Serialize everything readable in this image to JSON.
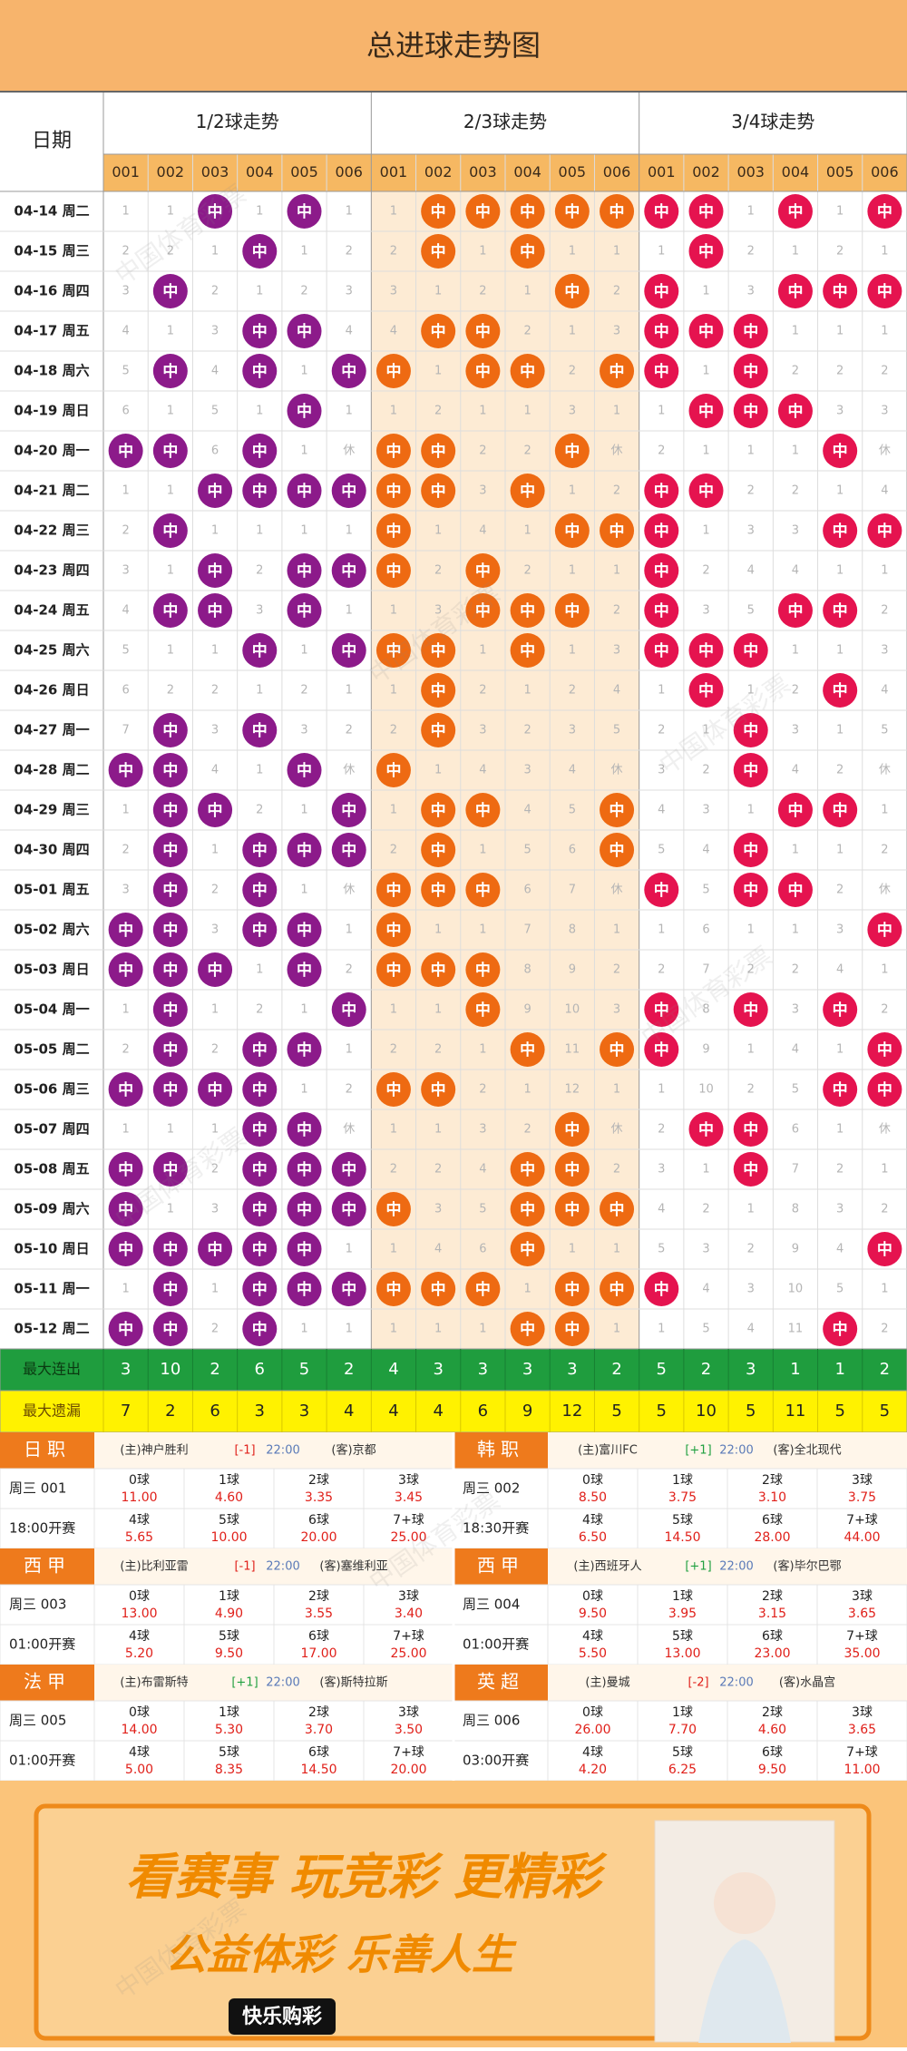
{
  "title": "总进球走势图",
  "date_header": "日期",
  "groups": [
    {
      "name": "1/2球走势",
      "color": "#8c1a8a"
    },
    {
      "name": "2/3球走势",
      "color": "#ee6a12"
    },
    {
      "name": "3/4球走势",
      "color": "#e5134f"
    }
  ],
  "codes": [
    "001",
    "002",
    "003",
    "004",
    "005",
    "006"
  ],
  "rows": [
    {
      "date": "04-14 周二",
      "cells": [
        1,
        1,
        "中",
        1,
        "中",
        1,
        1,
        "中",
        "中",
        "中",
        "中",
        "中",
        "中",
        "中",
        1,
        "中",
        1,
        "中"
      ]
    },
    {
      "date": "04-15 周三",
      "cells": [
        2,
        2,
        1,
        "中",
        1,
        2,
        2,
        "中",
        1,
        "中",
        1,
        1,
        1,
        "中",
        2,
        1,
        2,
        1
      ]
    },
    {
      "date": "04-16 周四",
      "cells": [
        3,
        "中",
        2,
        1,
        2,
        3,
        3,
        1,
        2,
        1,
        "中",
        2,
        "中",
        1,
        3,
        "中",
        "中",
        "中"
      ]
    },
    {
      "date": "04-17 周五",
      "cells": [
        4,
        1,
        3,
        "中",
        "中",
        4,
        4,
        "中",
        "中",
        2,
        1,
        3,
        "中",
        "中",
        "中",
        1,
        1,
        1
      ]
    },
    {
      "date": "04-18 周六",
      "cells": [
        5,
        "中",
        4,
        "中",
        1,
        "中",
        "中",
        1,
        "中",
        "中",
        2,
        "中",
        "中",
        1,
        "中",
        2,
        2,
        2
      ]
    },
    {
      "date": "04-19 周日",
      "cells": [
        6,
        1,
        5,
        1,
        "中",
        1,
        1,
        2,
        1,
        1,
        3,
        1,
        1,
        "中",
        "中",
        "中",
        3,
        3
      ]
    },
    {
      "date": "04-20 周一",
      "cells": [
        "中",
        "中",
        6,
        "中",
        1,
        "休",
        "中",
        "中",
        2,
        2,
        "中",
        "休",
        2,
        1,
        1,
        1,
        "中",
        "休"
      ]
    },
    {
      "date": "04-21 周二",
      "cells": [
        1,
        1,
        "中",
        "中",
        "中",
        "中",
        "中",
        "中",
        3,
        "中",
        1,
        2,
        "中",
        "中",
        2,
        2,
        1,
        4
      ]
    },
    {
      "date": "04-22 周三",
      "cells": [
        2,
        "中",
        1,
        1,
        1,
        1,
        "中",
        1,
        4,
        1,
        "中",
        "中",
        "中",
        1,
        3,
        3,
        "中",
        "中"
      ]
    },
    {
      "date": "04-23 周四",
      "cells": [
        3,
        1,
        "中",
        2,
        "中",
        "中",
        "中",
        2,
        "中",
        2,
        1,
        1,
        "中",
        2,
        4,
        4,
        1,
        1
      ]
    },
    {
      "date": "04-24 周五",
      "cells": [
        4,
        "中",
        "中",
        3,
        "中",
        1,
        1,
        3,
        "中",
        "中",
        "中",
        2,
        "中",
        3,
        5,
        "中",
        "中",
        2
      ]
    },
    {
      "date": "04-25 周六",
      "cells": [
        5,
        1,
        1,
        "中",
        1,
        "中",
        "中",
        "中",
        1,
        "中",
        1,
        3,
        "中",
        "中",
        "中",
        1,
        1,
        3
      ]
    },
    {
      "date": "04-26 周日",
      "cells": [
        6,
        2,
        2,
        1,
        2,
        1,
        1,
        "中",
        2,
        1,
        2,
        4,
        1,
        "中",
        1,
        2,
        "中",
        4
      ]
    },
    {
      "date": "04-27 周一",
      "cells": [
        7,
        "中",
        3,
        "中",
        3,
        2,
        2,
        "中",
        3,
        2,
        3,
        5,
        2,
        1,
        "中",
        3,
        1,
        5
      ]
    },
    {
      "date": "04-28 周二",
      "cells": [
        "中",
        "中",
        4,
        1,
        "中",
        "休",
        "中",
        1,
        4,
        3,
        4,
        "休",
        3,
        2,
        "中",
        4,
        2,
        "休"
      ]
    },
    {
      "date": "04-29 周三",
      "cells": [
        1,
        "中",
        "中",
        2,
        1,
        "中",
        1,
        "中",
        "中",
        4,
        5,
        "中",
        4,
        3,
        1,
        "中",
        "中",
        1
      ]
    },
    {
      "date": "04-30 周四",
      "cells": [
        2,
        "中",
        1,
        "中",
        "中",
        "中",
        2,
        "中",
        1,
        5,
        6,
        "中",
        5,
        4,
        "中",
        1,
        1,
        2
      ]
    },
    {
      "date": "05-01 周五",
      "cells": [
        3,
        "中",
        2,
        "中",
        1,
        "休",
        "中",
        "中",
        "中",
        6,
        7,
        "休",
        "中",
        5,
        "中",
        "中",
        2,
        "休"
      ]
    },
    {
      "date": "05-02 周六",
      "cells": [
        "中",
        "中",
        3,
        "中",
        "中",
        1,
        "中",
        1,
        1,
        7,
        8,
        1,
        1,
        6,
        1,
        1,
        3,
        "中"
      ]
    },
    {
      "date": "05-03 周日",
      "cells": [
        "中",
        "中",
        "中",
        1,
        "中",
        2,
        "中",
        "中",
        "中",
        8,
        9,
        2,
        2,
        7,
        2,
        2,
        4,
        1
      ]
    },
    {
      "date": "05-04 周一",
      "cells": [
        1,
        "中",
        1,
        2,
        1,
        "中",
        1,
        1,
        "中",
        9,
        10,
        3,
        "中",
        8,
        "中",
        3,
        "中",
        2
      ]
    },
    {
      "date": "05-05 周二",
      "cells": [
        2,
        "中",
        2,
        "中",
        "中",
        1,
        2,
        2,
        1,
        "中",
        11,
        "中",
        "中",
        9,
        1,
        4,
        1,
        "中"
      ]
    },
    {
      "date": "05-06 周三",
      "cells": [
        "中",
        "中",
        "中",
        "中",
        1,
        2,
        "中",
        "中",
        2,
        1,
        12,
        1,
        1,
        10,
        2,
        5,
        "中",
        "中"
      ]
    },
    {
      "date": "05-07 周四",
      "cells": [
        1,
        1,
        1,
        "中",
        "中",
        "休",
        1,
        1,
        3,
        2,
        "中",
        "休",
        2,
        "中",
        "中",
        6,
        1,
        "休"
      ]
    },
    {
      "date": "05-08 周五",
      "cells": [
        "中",
        "中",
        2,
        "中",
        "中",
        "中",
        2,
        2,
        4,
        "中",
        "中",
        2,
        3,
        1,
        "中",
        7,
        2,
        1
      ]
    },
    {
      "date": "05-09 周六",
      "cells": [
        "中",
        1,
        3,
        "中",
        "中",
        "中",
        "中",
        3,
        5,
        "中",
        "中",
        "中",
        4,
        2,
        1,
        8,
        3,
        2
      ]
    },
    {
      "date": "05-10 周日",
      "cells": [
        "中",
        "中",
        "中",
        "中",
        "中",
        1,
        1,
        4,
        6,
        "中",
        1,
        1,
        5,
        3,
        2,
        9,
        4,
        "中"
      ]
    },
    {
      "date": "05-11 周一",
      "cells": [
        1,
        "中",
        1,
        "中",
        "中",
        "中",
        "中",
        "中",
        "中",
        1,
        "中",
        "中",
        "中",
        4,
        3,
        10,
        5,
        1
      ]
    },
    {
      "date": "05-12 周二",
      "cells": [
        "中",
        "中",
        2,
        "中",
        1,
        1,
        1,
        1,
        1,
        "中",
        "中",
        1,
        1,
        5,
        4,
        11,
        "中",
        2
      ]
    }
  ],
  "stats": [
    {
      "label": "最大连出",
      "values": [
        3,
        10,
        2,
        6,
        5,
        2,
        4,
        3,
        3,
        3,
        3,
        2,
        5,
        2,
        3,
        1,
        1,
        2
      ]
    },
    {
      "label": "最大遗漏",
      "values": [
        7,
        2,
        6,
        3,
        3,
        4,
        4,
        4,
        6,
        9,
        12,
        5,
        5,
        10,
        5,
        11,
        5,
        5
      ]
    }
  ],
  "matches": [
    {
      "league": "日职",
      "home": "(主)神户胜利",
      "handicap": "[-1]",
      "time": "22:00",
      "away": "(客)京都",
      "match": "周三 001",
      "kickoff": "18:00开赛",
      "odds": [
        {
          "label": "0球",
          "value": "11.00"
        },
        {
          "label": "1球",
          "value": "4.60"
        },
        {
          "label": "2球",
          "value": "3.35"
        },
        {
          "label": "3球",
          "value": "3.45"
        },
        {
          "label": "4球",
          "value": "5.65"
        },
        {
          "label": "5球",
          "value": "10.00"
        },
        {
          "label": "6球",
          "value": "20.00"
        },
        {
          "label": "7+球",
          "value": "25.00"
        }
      ]
    },
    {
      "league": "韩职",
      "home": "(主)富川FC",
      "handicap": "[+1]",
      "time": "22:00",
      "away": "(客)全北现代",
      "match": "周三 002",
      "kickoff": "18:30开赛",
      "odds": [
        {
          "label": "0球",
          "value": "8.50"
        },
        {
          "label": "1球",
          "value": "3.75"
        },
        {
          "label": "2球",
          "value": "3.10"
        },
        {
          "label": "3球",
          "value": "3.75"
        },
        {
          "label": "4球",
          "value": "6.50"
        },
        {
          "label": "5球",
          "value": "14.50"
        },
        {
          "label": "6球",
          "value": "28.00"
        },
        {
          "label": "7+球",
          "value": "44.00"
        }
      ]
    },
    {
      "league": "西甲",
      "home": "(主)比利亚雷",
      "handicap": "[-1]",
      "time": "22:00",
      "away": "(客)塞维利亚",
      "match": "周三 003",
      "kickoff": "01:00开赛",
      "odds": [
        {
          "label": "0球",
          "value": "13.00"
        },
        {
          "label": "1球",
          "value": "4.90"
        },
        {
          "label": "2球",
          "value": "3.55"
        },
        {
          "label": "3球",
          "value": "3.40"
        },
        {
          "label": "4球",
          "value": "5.20"
        },
        {
          "label": "5球",
          "value": "9.50"
        },
        {
          "label": "6球",
          "value": "17.00"
        },
        {
          "label": "7+球",
          "value": "25.00"
        }
      ]
    },
    {
      "league": "西甲",
      "home": "(主)西班牙人",
      "handicap": "[+1]",
      "time": "22:00",
      "away": "(客)毕尔巴鄂",
      "match": "周三 004",
      "kickoff": "01:00开赛",
      "odds": [
        {
          "label": "0球",
          "value": "9.50"
        },
        {
          "label": "1球",
          "value": "3.95"
        },
        {
          "label": "2球",
          "value": "3.15"
        },
        {
          "label": "3球",
          "value": "3.65"
        },
        {
          "label": "4球",
          "value": "5.50"
        },
        {
          "label": "5球",
          "value": "13.00"
        },
        {
          "label": "6球",
          "value": "23.00"
        },
        {
          "label": "7+球",
          "value": "35.00"
        }
      ]
    },
    {
      "league": "法甲",
      "home": "(主)布雷斯特",
      "handicap": "[+1]",
      "time": "22:00",
      "away": "(客)斯特拉斯",
      "match": "周三 005",
      "kickoff": "01:00开赛",
      "odds": [
        {
          "label": "0球",
          "value": "14.00"
        },
        {
          "label": "1球",
          "value": "5.30"
        },
        {
          "label": "2球",
          "value": "3.70"
        },
        {
          "label": "3球",
          "value": "3.50"
        },
        {
          "label": "4球",
          "value": "5.00"
        },
        {
          "label": "5球",
          "value": "8.35"
        },
        {
          "label": "6球",
          "value": "14.50"
        },
        {
          "label": "7+球",
          "value": "20.00"
        }
      ]
    },
    {
      "league": "英超",
      "home": "(主)曼城",
      "handicap": "[-2]",
      "time": "22:00",
      "away": "(客)水晶宫",
      "match": "周三 006",
      "kickoff": "03:00开赛",
      "odds": [
        {
          "label": "0球",
          "value": "26.00"
        },
        {
          "label": "1球",
          "value": "7.70"
        },
        {
          "label": "2球",
          "value": "4.60"
        },
        {
          "label": "3球",
          "value": "3.65"
        },
        {
          "label": "4球",
          "value": "4.20"
        },
        {
          "label": "5球",
          "value": "6.25"
        },
        {
          "label": "6球",
          "value": "9.50"
        },
        {
          "label": "7+球",
          "value": "11.00"
        }
      ]
    }
  ],
  "banner": {
    "slogan": "看赛事 玩竞彩 更精彩",
    "motto": "公益体彩 乐善人生",
    "brand": "快乐购彩"
  },
  "watermark": "中国体育彩票"
}
